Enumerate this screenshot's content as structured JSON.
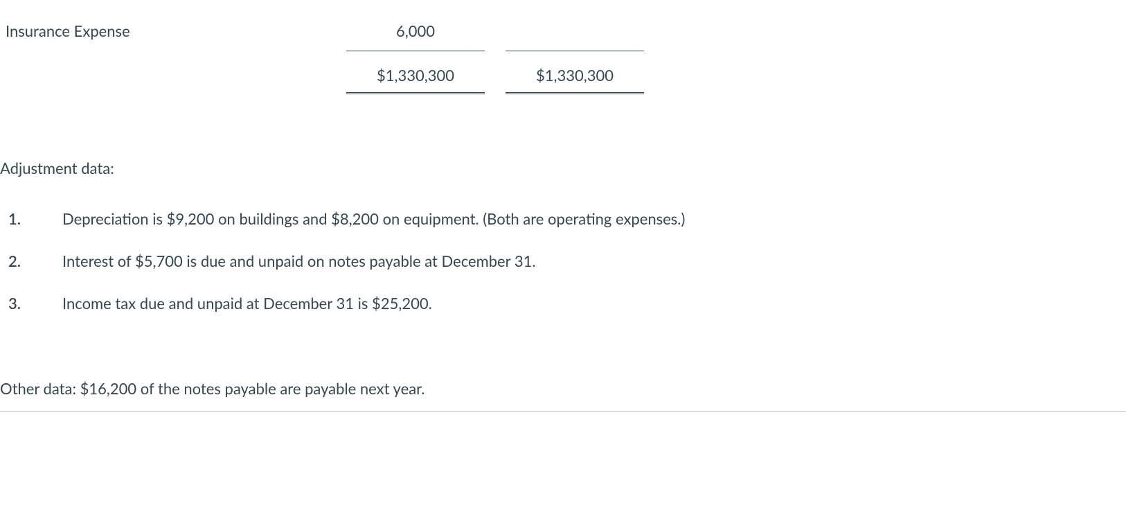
{
  "trial_balance": {
    "row_label": "Insurance Expense",
    "row_debit": "6,000",
    "total_debit": "$1,330,300",
    "total_credit": "$1,330,300"
  },
  "adjustment_heading": "Adjustment data:",
  "adjustments": [
    {
      "num": "1.",
      "text": "Depreciation is $9,200 on buildings and $8,200 on equipment. (Both are operating expenses.)"
    },
    {
      "num": "2.",
      "text": "Interest of $5,700 is due and unpaid on notes payable at December 31."
    },
    {
      "num": "3.",
      "text": "Income tax due and unpaid at December 31 is $25,200."
    }
  ],
  "other_data": "Other data: $16,200 of the notes payable are payable next year."
}
